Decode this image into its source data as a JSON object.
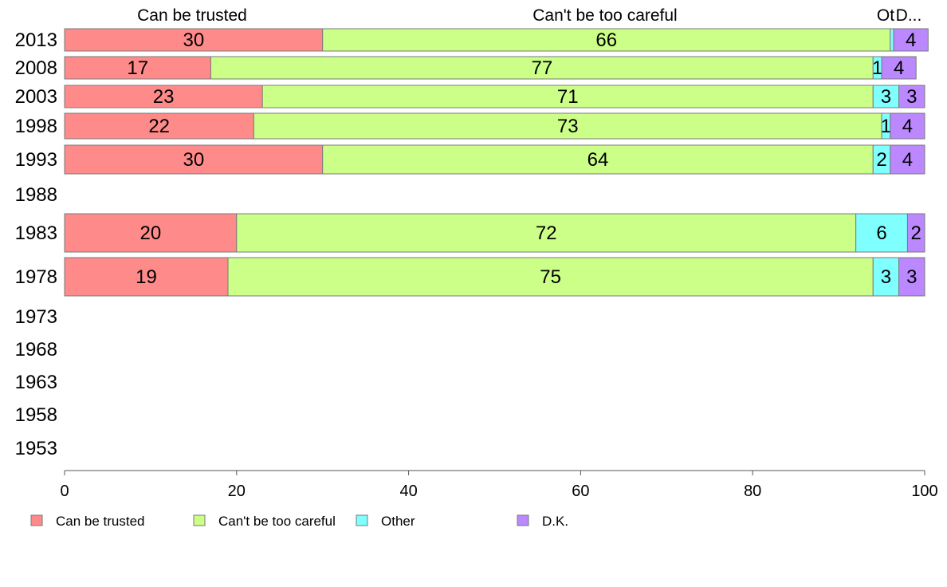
{
  "chart_data": {
    "type": "bar",
    "orientation": "horizontal",
    "stacked": true,
    "categories": [
      "2013",
      "2008",
      "2003",
      "1998",
      "1993",
      "1988",
      "1983",
      "1978",
      "1973",
      "1968",
      "1963",
      "1958",
      "1953"
    ],
    "series": [
      {
        "name": "Can be trusted",
        "color": "#ff8a8a",
        "values": [
          30,
          17,
          23,
          22,
          30,
          null,
          20,
          19,
          null,
          null,
          null,
          null,
          null
        ]
      },
      {
        "name": "Can't be too careful",
        "color": "#ccff88",
        "values": [
          66,
          77,
          71,
          73,
          64,
          null,
          72,
          75,
          null,
          null,
          null,
          null,
          null
        ]
      },
      {
        "name": "Other",
        "color": "#80ffff",
        "values": [
          0.4,
          1,
          3,
          1,
          2,
          null,
          6,
          3,
          null,
          null,
          null,
          null,
          null
        ]
      },
      {
        "name": "D.K.",
        "color": "#bb88ff",
        "values": [
          4,
          4,
          3,
          4,
          4,
          null,
          2,
          3,
          null,
          null,
          null,
          null,
          null
        ]
      }
    ],
    "column_headers": [
      "Can be trusted",
      "Can't be too careful",
      "Ot",
      "D..."
    ],
    "x_ticks": [
      0,
      20,
      40,
      60,
      80,
      100
    ],
    "xlim": [
      0,
      100
    ],
    "legend_position": "bottom",
    "grid": false
  }
}
